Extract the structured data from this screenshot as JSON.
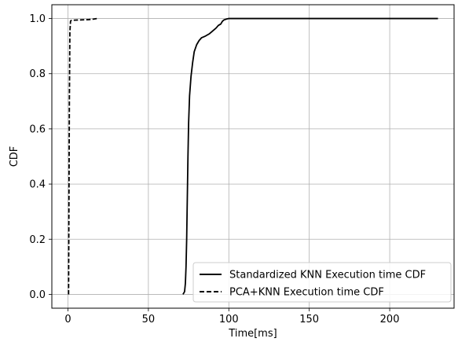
{
  "chart_data": {
    "type": "line",
    "xlabel": "Time[ms]",
    "ylabel": "CDF",
    "xlim": [
      -10,
      240
    ],
    "ylim": [
      -0.05,
      1.05
    ],
    "xticks": [
      0,
      50,
      100,
      150,
      200
    ],
    "yticks": [
      0.0,
      0.2,
      0.4,
      0.6,
      0.8,
      1.0
    ],
    "xtick_labels": [
      "0",
      "50",
      "100",
      "150",
      "200"
    ],
    "ytick_labels": [
      "0.0",
      "0.2",
      "0.4",
      "0.6",
      "0.8",
      "1.0"
    ],
    "grid": true,
    "legend_position": "lower right",
    "series": [
      {
        "name": "Standardized KNN Execution time CDF",
        "style": "solid",
        "color": "#000000",
        "x": [
          71.5,
          72.5,
          73.0,
          73.4,
          73.8,
          74.2,
          74.6,
          75.0,
          75.6,
          76.5,
          77.5,
          78.5,
          80.0,
          81.5,
          83.0,
          85.0,
          88.0,
          90.0,
          92.0,
          93.5,
          95.0,
          96.0,
          97.0,
          98.5,
          100.0,
          103.0,
          110.0,
          130.0,
          160.0,
          200.0,
          230.0
        ],
        "y": [
          0.0,
          0.01,
          0.04,
          0.1,
          0.2,
          0.35,
          0.5,
          0.62,
          0.72,
          0.79,
          0.84,
          0.88,
          0.905,
          0.92,
          0.93,
          0.935,
          0.945,
          0.955,
          0.965,
          0.975,
          0.98,
          0.99,
          0.995,
          0.998,
          1.0,
          1.0,
          1.0,
          1.0,
          1.0,
          1.0,
          1.0
        ]
      },
      {
        "name": "PCA+KNN Execution time CDF",
        "style": "dashed",
        "color": "#000000",
        "x": [
          0.4,
          0.6,
          0.9,
          1.2,
          1.6,
          2.0,
          4.0,
          8.0,
          13.0,
          16.0,
          18.0
        ],
        "y": [
          0.0,
          0.3,
          0.7,
          0.95,
          0.99,
          0.993,
          0.994,
          0.995,
          0.996,
          0.998,
          1.0
        ]
      }
    ]
  }
}
